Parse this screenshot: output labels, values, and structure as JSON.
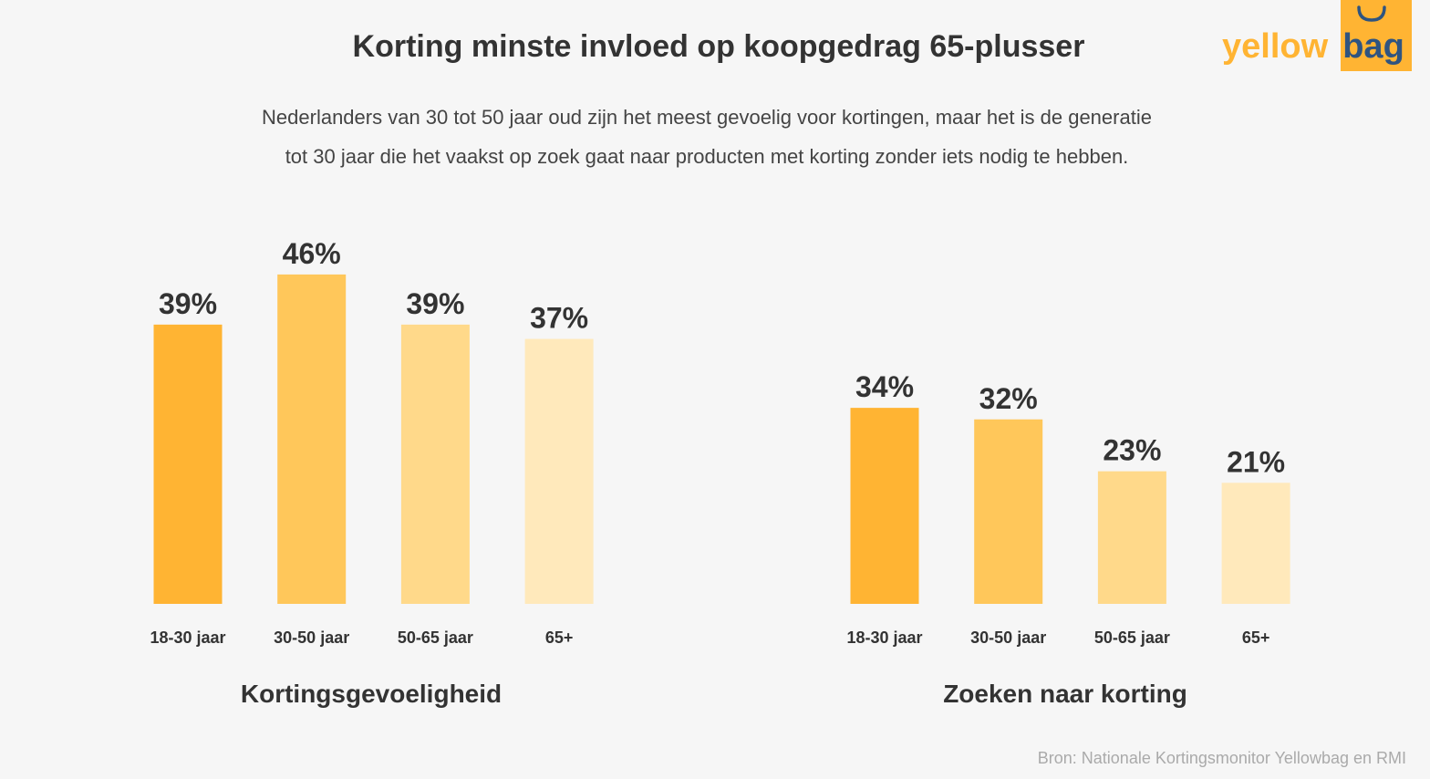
{
  "header": {
    "title": "Korting minste invloed op koopgedrag 65-plusser",
    "subtitle_line1": "Nederlanders van 30 tot 50 jaar oud zijn het meest gevoelig voor kortingen, maar het is de generatie",
    "subtitle_line2": "tot 30 jaar die het vaakst op zoek gaat naar producten met korting zonder iets nodig te hebben."
  },
  "logo": {
    "text1": "yellow",
    "text2": "bag"
  },
  "source": "Bron: Nationale Kortingsmonitor Yellowbag en RMI",
  "colors": [
    "#FFB433",
    "#FFC75A",
    "#FFD98A",
    "#FFE9BB"
  ],
  "chart_data": [
    {
      "type": "bar",
      "title": "Kortingsgevoeligheid",
      "categories": [
        "18-30 jaar",
        "30-50 jaar",
        "50-65 jaar",
        "65+"
      ],
      "values": [
        39,
        46,
        39,
        37
      ],
      "labels": [
        "39%",
        "46%",
        "39%",
        "37%"
      ],
      "unit": "%"
    },
    {
      "type": "bar",
      "title": "Zoeken naar korting",
      "categories": [
        "18-30 jaar",
        "30-50 jaar",
        "50-65 jaar",
        "65+"
      ],
      "values": [
        34,
        32,
        23,
        21
      ],
      "labels": [
        "34%",
        "32%",
        "23%",
        "21%"
      ],
      "unit": "%"
    }
  ]
}
